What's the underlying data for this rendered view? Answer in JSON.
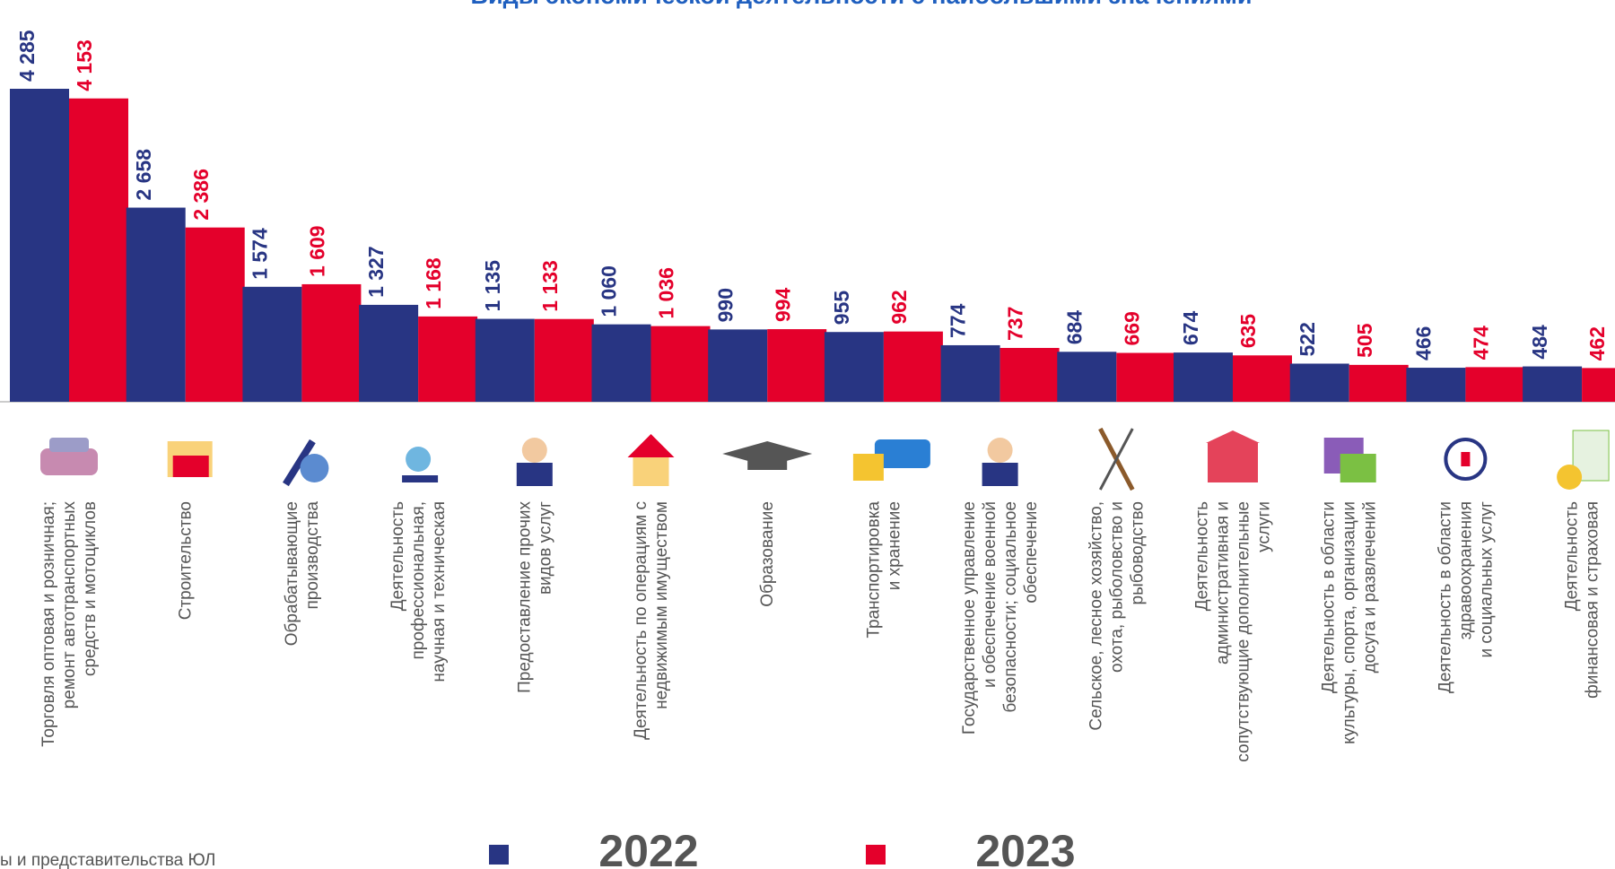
{
  "chart_data": {
    "type": "bar",
    "title": "Виды экономической деятельности с наибольшими значениями",
    "footnote": "ы и представительства ЮЛ",
    "categories": [
      "Торговля оптовая и розничная;\nремонт автотранспортных\nсредств и мотоциклов",
      "Строительство",
      "Обрабатывающие\nпроизводства",
      "Деятельность\nпрофессиональная,\nнаучная и техническая",
      "Предоставление прочих\nвидов услуг",
      "Деятельность по операциям с\nнедвижимым имуществом",
      "Образование",
      "Транспортировка\nи хранение",
      "Государственное управление\nи обеспечение военной\nбезопасности; социальное\nобеспечение",
      "Сельское, лесное хозяйство,\nохота, рыболовство и\nрыбоводство",
      "Деятельность\nадминистративная и\nсопутствующие дополнительные\nуслуги",
      "Деятельность в области\nкультуры, спорта, организации\nдосуга и развлечений",
      "Деятельность в области\nздравоохранения\nи социальных услуг",
      "Деятельность\nфинансовая и страховая"
    ],
    "series": [
      {
        "name": "2022",
        "color": "#283583",
        "values": [
          4285,
          2658,
          1574,
          1327,
          1135,
          1060,
          990,
          955,
          774,
          684,
          674,
          522,
          466,
          484
        ],
        "value_labels": [
          "4 285",
          "2 658",
          "1 574",
          "1 327",
          "1 135",
          "1 060",
          "990",
          "955",
          "774",
          "684",
          "674",
          "522",
          "466",
          "484"
        ]
      },
      {
        "name": "2023",
        "color": "#e4002b",
        "values": [
          4153,
          2386,
          1609,
          1168,
          1133,
          1036,
          994,
          962,
          737,
          669,
          635,
          505,
          474,
          462
        ],
        "value_labels": [
          "4 153",
          "2 386",
          "1 609",
          "1 168",
          "1 133",
          "1 036",
          "994",
          "962",
          "737",
          "669",
          "635",
          "505",
          "474",
          "462"
        ]
      }
    ]
  }
}
